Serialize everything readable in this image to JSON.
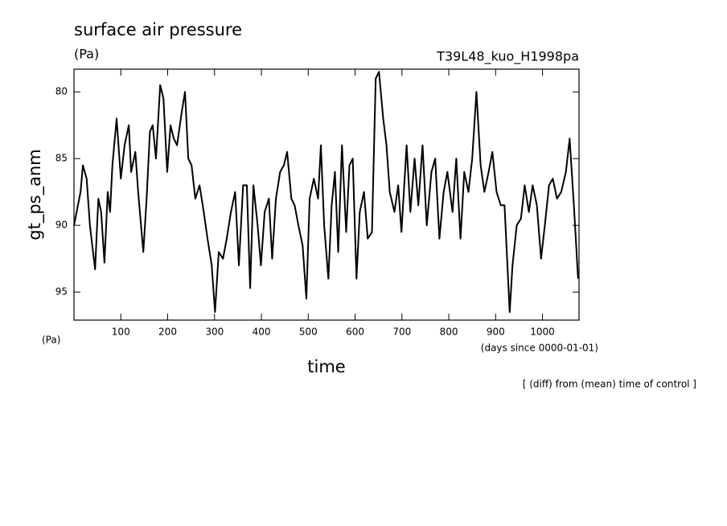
{
  "chart_data": {
    "type": "line",
    "title": "surface air pressure",
    "subtitle_left": "(Pa)",
    "subtitle_right": "T39L48_kuo_H1998pa",
    "ylabel": "gt_ps_anm",
    "ylabel_unit": "(Pa)",
    "xlabel": "time",
    "xlabel_unit": "(days since 0000-01-01)",
    "note": "[ (diff) from (mean) time of control ]",
    "xlim": [
      0,
      1078
    ],
    "ylim": [
      97.1,
      78.3
    ],
    "xticks": [
      100,
      200,
      300,
      400,
      500,
      600,
      700,
      800,
      900,
      1000
    ],
    "yticks": [
      80,
      85,
      90,
      95
    ],
    "grid": false,
    "series": [
      {
        "color": "#000000",
        "x": [
          0,
          14,
          19,
          27,
          34,
          45,
          52,
          58,
          65,
          72,
          77,
          82,
          91,
          100,
          108,
          117,
          122,
          131,
          137,
          148,
          155,
          162,
          168,
          175,
          184,
          191,
          199,
          206,
          213,
          220,
          230,
          237,
          244,
          251,
          259,
          268,
          277,
          285,
          294,
          301,
          309,
          318,
          326,
          335,
          344,
          352,
          361,
          369,
          376,
          383,
          392,
          399,
          407,
          416,
          423,
          431,
          440,
          448,
          455,
          464,
          471,
          479,
          488,
          496,
          503,
          512,
          521,
          527,
          534,
          543,
          550,
          557,
          564,
          572,
          581,
          588,
          595,
          603,
          610,
          619,
          627,
          636,
          644,
          651,
          660,
          667,
          674,
          684,
          692,
          699,
          710,
          718,
          727,
          735,
          744,
          753,
          763,
          771,
          780,
          789,
          797,
          808,
          816,
          825,
          833,
          842,
          850,
          859,
          868,
          876,
          885,
          893,
          902,
          911,
          919,
          930,
          936,
          945,
          954,
          962,
          971,
          979,
          988,
          997,
          1005,
          1014,
          1022,
          1031,
          1040,
          1050,
          1058,
          1067,
          1076
        ],
        "values": [
          90,
          87.5,
          85.5,
          86.5,
          90,
          93.3,
          88,
          89,
          92.8,
          87.5,
          89,
          85.5,
          82,
          86.5,
          84,
          82.5,
          86,
          84.5,
          87.5,
          92,
          88,
          83,
          82.5,
          85,
          79.5,
          80.5,
          86,
          82.5,
          83.5,
          84,
          81.5,
          80,
          85,
          85.5,
          88,
          87,
          89,
          91,
          93,
          96.5,
          92,
          92.5,
          91,
          89,
          87.5,
          93,
          87,
          87,
          94.7,
          87,
          90,
          93,
          89,
          88,
          92.5,
          88,
          86,
          85.5,
          84.5,
          88,
          88.5,
          90,
          91.5,
          95.5,
          88,
          86.5,
          88,
          84,
          90,
          94,
          88.5,
          86,
          92,
          84,
          90.5,
          85.5,
          85,
          94,
          89,
          87.5,
          91,
          90.5,
          79,
          78.5,
          82,
          84,
          87.5,
          89,
          87,
          90.5,
          84,
          89,
          85,
          88.5,
          84,
          90,
          86,
          85,
          91,
          87.5,
          86,
          89,
          85,
          91,
          86,
          87.5,
          85,
          80,
          85.5,
          87.5,
          86,
          84.5,
          87.5,
          88.5,
          88.5,
          96.5,
          93,
          90,
          89.5,
          87,
          89,
          87,
          88.5,
          92.5,
          90,
          87,
          86.5,
          88,
          87.5,
          86,
          83.5,
          88.5,
          94
        ]
      }
    ]
  }
}
